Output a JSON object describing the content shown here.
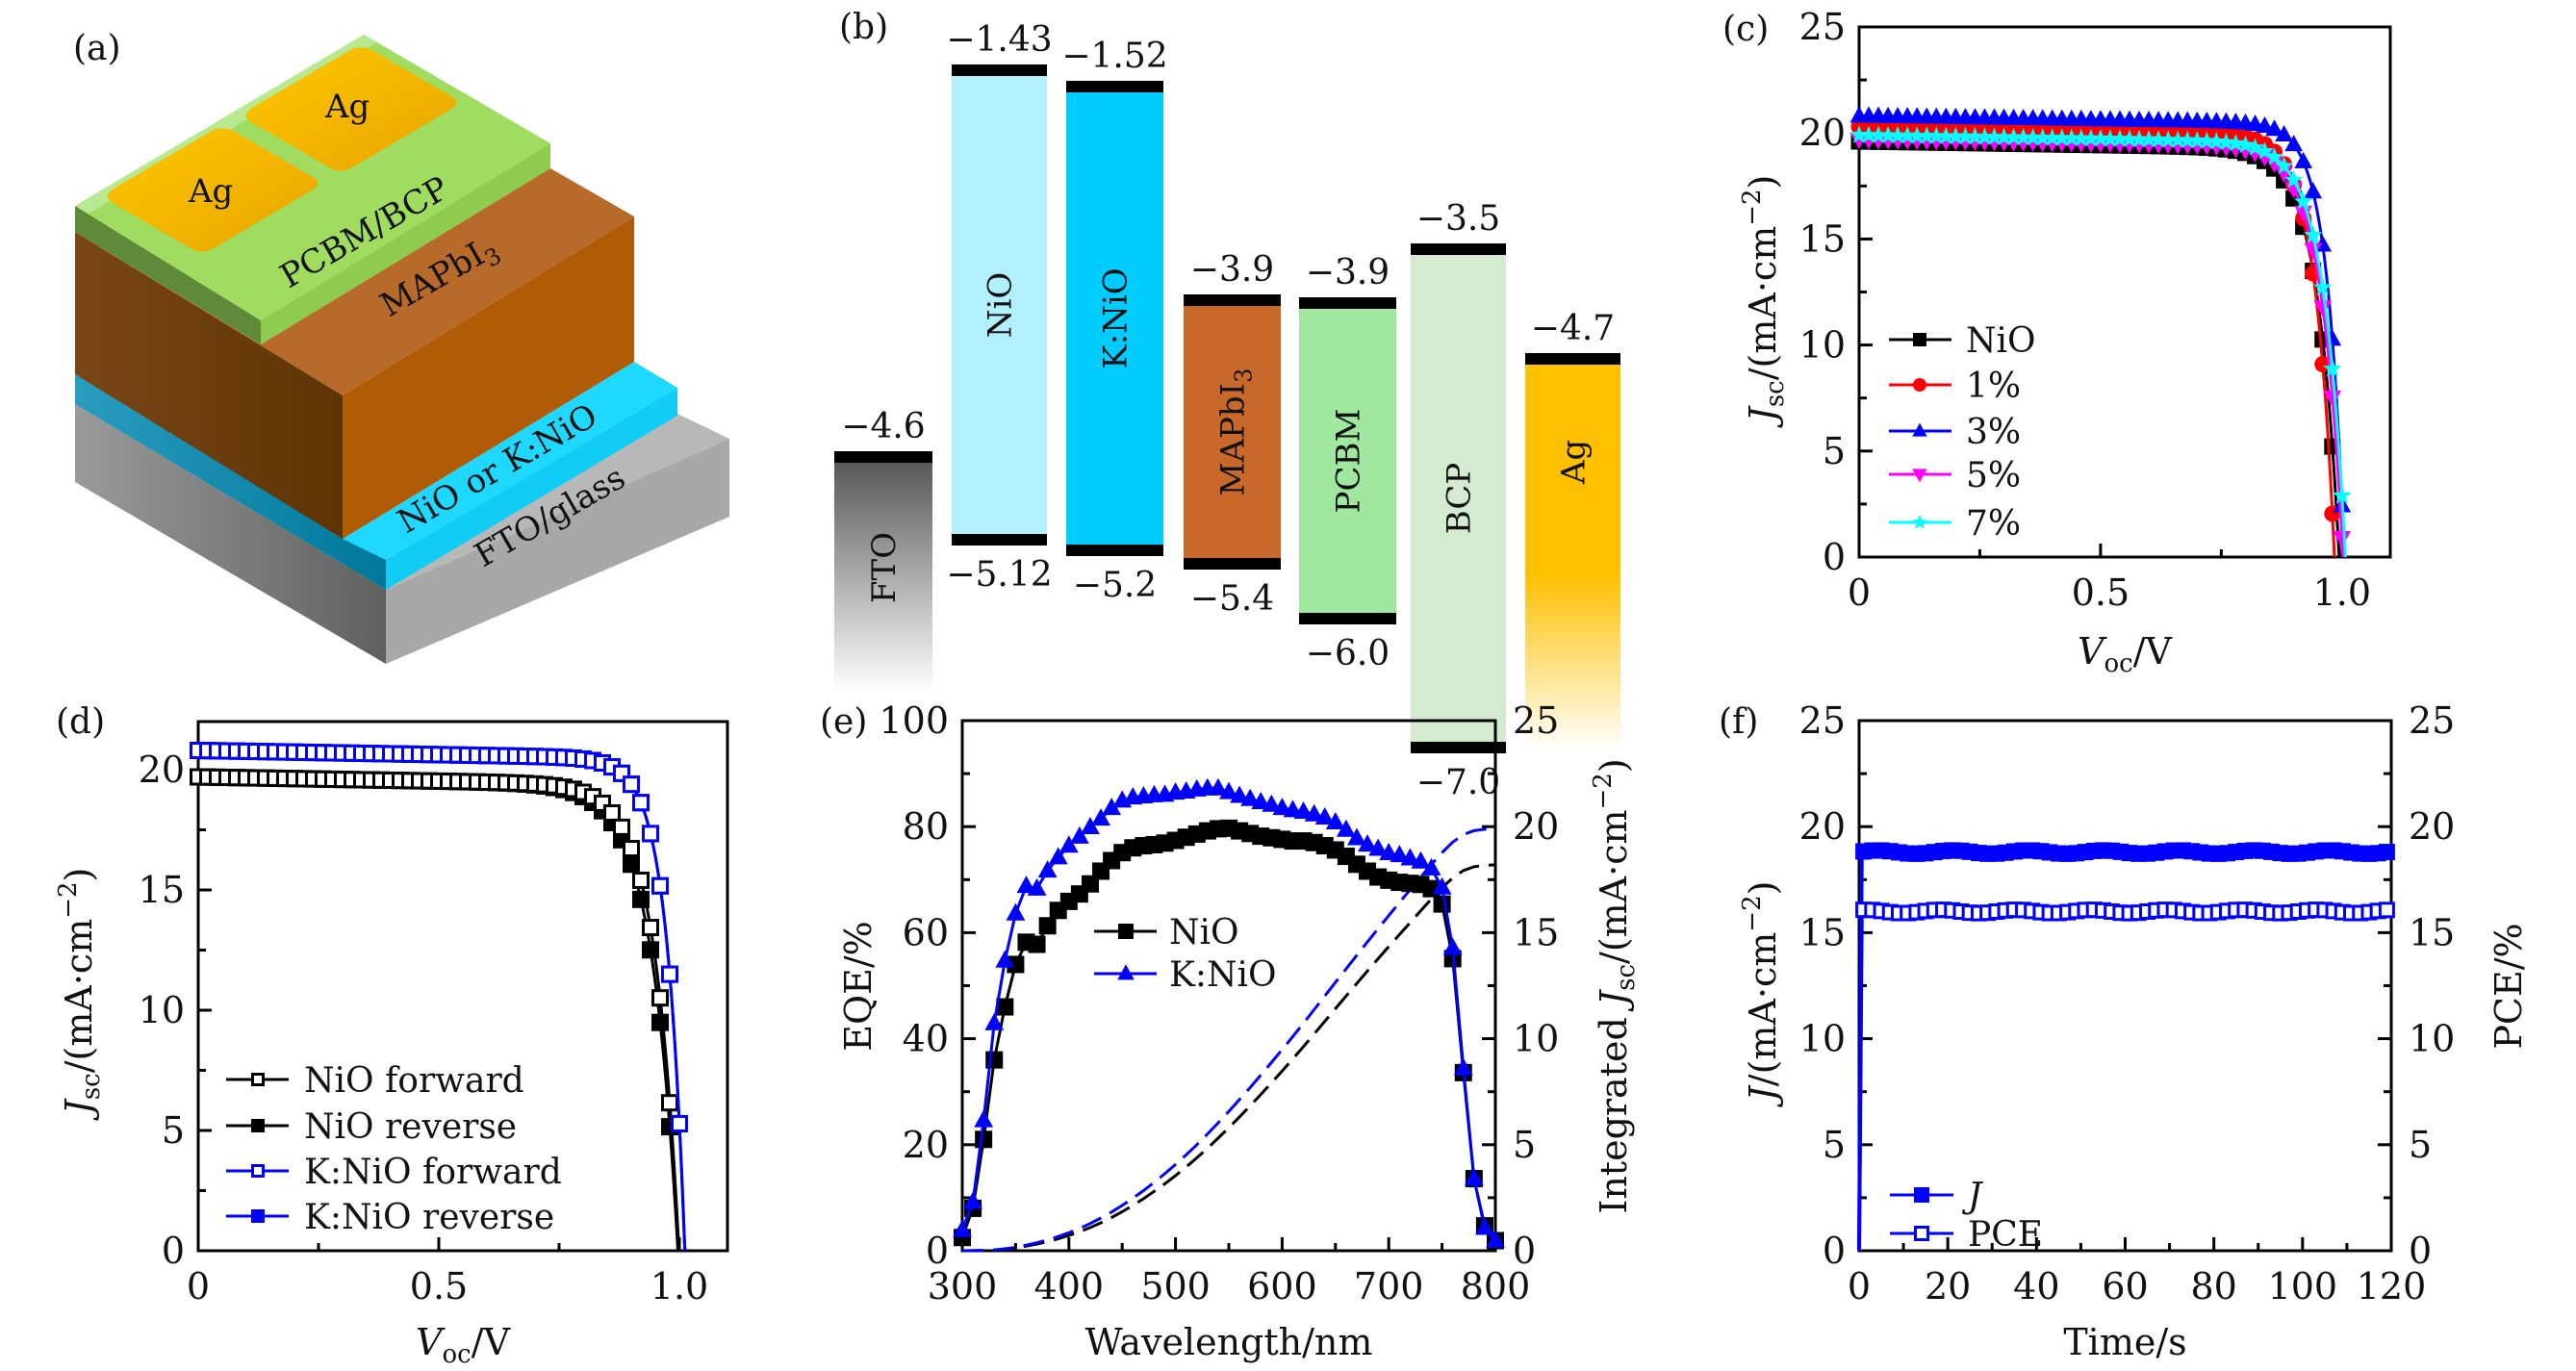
{
  "figure": {
    "panel_labels": [
      "(a)",
      "(b)",
      "(c)",
      "(d)",
      "(e)",
      "(f)"
    ]
  },
  "colors": {
    "black": "#000000",
    "red": "#ff0000",
    "blue": "#0000ff",
    "magenta": "#ff00ff",
    "cyan": "#00ffff",
    "nio": "#b3f0fd",
    "knio": "#00ccff",
    "mapbi": "#c8692b",
    "pcbm": "#a0e8a0",
    "bcp": "#d5ebcf",
    "ag": "#ffc000",
    "fto": "#5a5a5a"
  },
  "device": {
    "layers": [
      {
        "name": "Ag",
        "label": "Ag"
      },
      {
        "name": "Ag",
        "label": "Ag"
      },
      {
        "name": "PCBM/BCP",
        "label": "PCBM/BCP"
      },
      {
        "name": "MAPbI3",
        "label": "MAPbI",
        "sub": "3"
      },
      {
        "name": "NiO or K:NiO",
        "label": "NiO or K:NiO"
      },
      {
        "name": "FTO/glass",
        "label": "FTO/glass"
      }
    ]
  },
  "chart_data": [
    {
      "panel": "b",
      "type": "energy-level-diagram",
      "title": "",
      "unit": "eV",
      "materials": [
        {
          "name": "FTO",
          "top": -4.6,
          "bottom": null,
          "color": "#5a5a5a",
          "top_label": "−4.6",
          "bottom_label": ""
        },
        {
          "name": "NiO",
          "top": -1.43,
          "bottom": -5.12,
          "color": "#b3f0fd",
          "top_label": "−1.43",
          "bottom_label": "−5.12"
        },
        {
          "name": "K:NiO",
          "top": -1.52,
          "bottom": -5.2,
          "color": "#00ccff",
          "top_label": "−1.52",
          "bottom_label": "−5.2"
        },
        {
          "name": "MAPbI3",
          "label": "MAPbI",
          "sub": "3",
          "top": -3.9,
          "bottom": -5.4,
          "color": "#c8692b",
          "top_label": "−3.9",
          "bottom_label": "−5.4"
        },
        {
          "name": "PCBM",
          "top": -3.9,
          "bottom": -6.0,
          "color": "#a0e8a0",
          "top_label": "−3.9",
          "bottom_label": "−6.0"
        },
        {
          "name": "BCP",
          "top": -3.5,
          "bottom": -7.0,
          "color": "#d5ebcf",
          "top_label": "−3.5",
          "bottom_label": "−7.0"
        },
        {
          "name": "Ag",
          "top": -4.7,
          "bottom": null,
          "color": "#ffc000",
          "top_label": "−4.7",
          "bottom_label": ""
        }
      ]
    },
    {
      "panel": "c",
      "type": "line",
      "title": "",
      "xlabel": "V_oc/V",
      "xlabel_main": "V",
      "xlabel_sub": "oc",
      "xlabel_unit": "/V",
      "ylabel_main": "J",
      "ylabel_sub": "sc",
      "ylabel_unit": "/(mA·cm",
      "ylabel_exp": "−2",
      "ylabel_close": ")",
      "xlim": [
        0,
        1.1
      ],
      "ylim": [
        0,
        25
      ],
      "xticks": [
        0,
        0.5,
        1.0
      ],
      "xtick_labels": [
        "0",
        "0.5",
        "1.0"
      ],
      "yticks": [
        0,
        5,
        10,
        15,
        20,
        25
      ],
      "ytick_labels": [
        "0",
        "5",
        "10",
        "15",
        "20",
        "25"
      ],
      "legend_position": "lower-left",
      "series": [
        {
          "name": "NiO",
          "color": "#000000",
          "marker": "square",
          "jsc": 19.6,
          "voc": 0.995,
          "knee": 0.045
        },
        {
          "name": "1%",
          "color": "#ff0000",
          "marker": "circle",
          "jsc": 20.3,
          "voc": 0.985,
          "knee": 0.04
        },
        {
          "name": "3%",
          "color": "#0000ff",
          "marker": "triangle-up",
          "jsc": 20.8,
          "voc": 1.005,
          "knee": 0.035
        },
        {
          "name": "5%",
          "color": "#ff00ff",
          "marker": "triangle-down",
          "jsc": 19.7,
          "voc": 1.003,
          "knee": 0.045
        },
        {
          "name": "7%",
          "color": "#00ffff",
          "marker": "star",
          "jsc": 19.9,
          "voc": 1.008,
          "knee": 0.045
        }
      ]
    },
    {
      "panel": "d",
      "type": "line",
      "title": "",
      "xlabel_main": "V",
      "xlabel_sub": "oc",
      "xlabel_unit": "/V",
      "ylabel_main": "J",
      "ylabel_sub": "sc",
      "ylabel_unit": "/(mA·cm",
      "ylabel_exp": "−2",
      "ylabel_close": ")",
      "xlim": [
        0,
        1.1
      ],
      "ylim": [
        0,
        22
      ],
      "xticks": [
        0,
        0.5,
        1.0
      ],
      "xtick_labels": [
        "0",
        "0.5",
        "1.0"
      ],
      "yticks": [
        0,
        5,
        10,
        15,
        20
      ],
      "ytick_labels": [
        "0",
        "5",
        "10",
        "15",
        "20"
      ],
      "legend_position": "lower-left",
      "series": [
        {
          "name": "NiO forward",
          "color": "#000000",
          "marker": "square-open",
          "jsc": 19.7,
          "voc": 1.0,
          "knee": 0.05
        },
        {
          "name": "NiO reverse",
          "color": "#000000",
          "marker": "square",
          "jsc": 19.7,
          "voc": 0.998,
          "knee": 0.055
        },
        {
          "name": "K:NiO forward",
          "color": "#0000ff",
          "marker": "square-open",
          "jsc": 20.8,
          "voc": 1.012,
          "knee": 0.038
        },
        {
          "name": "K:NiO reverse",
          "color": "#0000ff",
          "marker": "square",
          "jsc": 20.8,
          "voc": 1.012,
          "knee": 0.038
        }
      ]
    },
    {
      "panel": "e",
      "type": "line",
      "title": "",
      "xlabel": "Wavelength/nm",
      "ylabel": "EQE/%",
      "ylabel_right_main": "Integrated ",
      "ylabel_right_j": "J",
      "ylabel_right_sub": "sc",
      "ylabel_right_unit": "/(mA·cm",
      "ylabel_right_exp": "−2",
      "ylabel_right_close": ")",
      "xlim": [
        300,
        800
      ],
      "ylim": [
        0,
        100
      ],
      "y2lim": [
        0,
        25
      ],
      "xticks": [
        300,
        400,
        500,
        600,
        700,
        800
      ],
      "xtick_labels": [
        "300",
        "400",
        "500",
        "600",
        "700",
        "800"
      ],
      "yticks": [
        0,
        20,
        40,
        60,
        80,
        100
      ],
      "ytick_labels": [
        "0",
        "20",
        "40",
        "60",
        "80",
        "100"
      ],
      "y2ticks": [
        0,
        5,
        10,
        15,
        20,
        25
      ],
      "y2tick_labels": [
        "0",
        "5",
        "10",
        "15",
        "20",
        "25"
      ],
      "legend_position": "center",
      "x": [
        300,
        310,
        320,
        330,
        340,
        350,
        360,
        370,
        380,
        390,
        400,
        410,
        420,
        430,
        440,
        450,
        460,
        470,
        480,
        490,
        500,
        510,
        520,
        530,
        540,
        550,
        560,
        570,
        580,
        590,
        600,
        610,
        620,
        630,
        640,
        650,
        660,
        670,
        680,
        690,
        700,
        710,
        720,
        730,
        740,
        750,
        760,
        770,
        780,
        790,
        800
      ],
      "series": [
        {
          "name": "NiO",
          "color": "#000000",
          "marker": "square",
          "axis": "left",
          "values": [
            2.5,
            8,
            21,
            36,
            46,
            54,
            58.2,
            57.8,
            61.3,
            64.2,
            65.9,
            67.3,
            69.2,
            71.6,
            73.6,
            75.1,
            76,
            76.4,
            76.6,
            76.9,
            77.4,
            78,
            78.6,
            79.2,
            79.6,
            79.7,
            79.2,
            78.7,
            78.2,
            77.9,
            77.6,
            77.3,
            77.3,
            77,
            76.4,
            75.6,
            74.4,
            72.9,
            71.6,
            70.5,
            69.9,
            69.5,
            69.3,
            69.1,
            68.3,
            65.4,
            55.1,
            33.6,
            13.6,
            4.7,
            1.9
          ]
        },
        {
          "name": "K:NiO",
          "color": "#0000ff",
          "marker": "triangle-up",
          "axis": "left",
          "values": [
            3.9,
            9.2,
            24.6,
            42.9,
            54.7,
            63.6,
            68.8,
            68.3,
            71.7,
            74.2,
            76.4,
            78.1,
            79.9,
            81.5,
            83.5,
            84.9,
            85.5,
            85.7,
            85.9,
            86,
            86.4,
            86.6,
            87,
            87.2,
            87.2,
            86.5,
            85.8,
            85.2,
            84.6,
            84.1,
            83.5,
            83.1,
            82.8,
            82.3,
            81.7,
            80.8,
            79.4,
            77.8,
            76.6,
            75.8,
            75,
            74.6,
            74,
            73.4,
            72.1,
            68.5,
            57.1,
            34.4,
            13.6,
            4.3,
            1.9
          ]
        }
      ],
      "integrated": [
        {
          "name": "NiO integrated Jsc",
          "color": "#000000",
          "style": "dashed",
          "axis": "right",
          "final": 18.2
        },
        {
          "name": "K:NiO integrated Jsc",
          "color": "#0000ff",
          "style": "dashed",
          "axis": "right",
          "final": 19.9
        }
      ]
    },
    {
      "panel": "f",
      "type": "line",
      "title": "",
      "xlabel": "Time/s",
      "ylabel_main": "J",
      "ylabel_unit": "/(mA·cm",
      "ylabel_exp": "−2",
      "ylabel_close": ")",
      "ylabel_right": "PCE/%",
      "xlim": [
        0,
        120
      ],
      "ylim": [
        0,
        25
      ],
      "y2lim": [
        0,
        25
      ],
      "xticks": [
        0,
        20,
        40,
        60,
        80,
        100,
        120
      ],
      "xtick_labels": [
        "0",
        "20",
        "40",
        "60",
        "80",
        "100",
        "120"
      ],
      "yticks": [
        0,
        5,
        10,
        15,
        20,
        25
      ],
      "ytick_labels": [
        "0",
        "5",
        "10",
        "15",
        "20",
        "25"
      ],
      "y2ticks": [
        0,
        5,
        10,
        15,
        20,
        25
      ],
      "y2tick_labels": [
        "0",
        "5",
        "10",
        "15",
        "20",
        "25"
      ],
      "legend_position": "lower-left",
      "series": [
        {
          "name": "J",
          "color": "#0000ff",
          "marker": "square",
          "axis": "left",
          "start": 0,
          "steady": 18.8
        },
        {
          "name": "PCE",
          "color": "#0000ff",
          "marker": "square-open",
          "axis": "right",
          "start": 0,
          "steady": 16.0
        }
      ]
    }
  ]
}
